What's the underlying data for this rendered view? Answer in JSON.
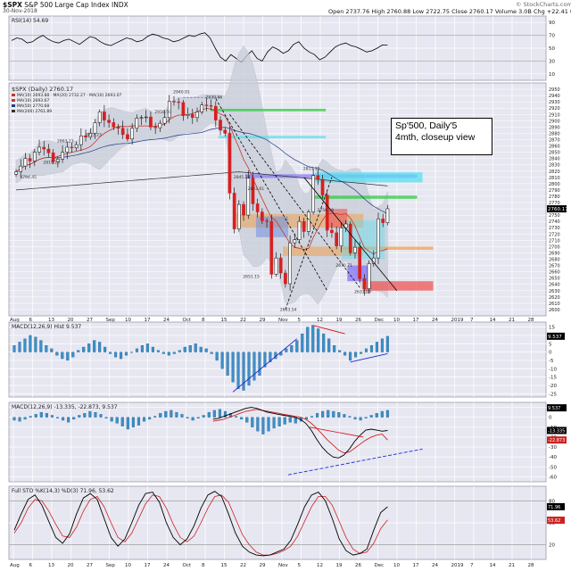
{
  "header": {
    "symbol": "$SPX",
    "name": "S&P 500 Large Cap Index",
    "exchange": "INDX",
    "date": "30-Nov-2018",
    "ohlc": "Open 2737.76  High 2760.88  Low 2722.75  Close 2760.17  Volume 3.0B  Chg +22.41 (+0.82%)",
    "watermark": "© StockCharts.com"
  },
  "annotation": {
    "line1": "Sp'500, Daily'5",
    "line2": "4mth, closeup view"
  },
  "chart_data": [
    {
      "type": "line",
      "panel": "rsi",
      "title": "RSI(14) 54.69",
      "yticks": [
        10,
        30,
        50,
        70,
        90
      ],
      "ylim": [
        0,
        100
      ],
      "series": [
        {
          "name": "RSI(14)",
          "values": [
            62,
            66,
            64,
            58,
            60,
            66,
            70,
            64,
            60,
            58,
            62,
            64,
            60,
            56,
            62,
            68,
            66,
            60,
            56,
            54,
            58,
            62,
            66,
            64,
            60,
            62,
            68,
            72,
            70,
            66,
            64,
            60,
            62,
            66,
            70,
            68,
            72,
            74,
            66,
            50,
            36,
            30,
            40,
            34,
            28,
            38,
            46,
            34,
            30,
            44,
            52,
            48,
            42,
            46,
            56,
            60,
            50,
            44,
            40,
            32,
            36,
            44,
            52,
            56,
            58,
            54,
            52,
            48,
            44,
            46,
            50,
            55,
            54.69
          ]
        }
      ]
    },
    {
      "type": "line",
      "panel": "price",
      "title": "$SPX (Daily) 2760.17",
      "legend": [
        "MA(10) 2693.88 · MA(20) 2732.27 · MA(10) 2693.07",
        "MA(10) 2693.67",
        "MA(50) 2770.68",
        "MA(200) 2761.89"
      ],
      "ylim": [
        2590,
        2960
      ],
      "yticks": [
        2600,
        2610,
        2620,
        2630,
        2640,
        2650,
        2660,
        2670,
        2680,
        2690,
        2700,
        2710,
        2720,
        2730,
        2740,
        2750,
        2760,
        2770,
        2780,
        2790,
        2800,
        2810,
        2820,
        2830,
        2840,
        2850,
        2860,
        2870,
        2880,
        2890,
        2900,
        2910,
        2920,
        2930,
        2940,
        2950
      ],
      "last_price": "2760.17",
      "xticks": [
        "Aug",
        "6",
        "13",
        "20",
        "27",
        "Sep",
        "10",
        "17",
        "24",
        "Oct",
        "8",
        "15",
        "22",
        "29",
        "Nov",
        "5",
        "12",
        "19",
        "26",
        "Dec",
        "10",
        "17",
        "24",
        "2019",
        "7",
        "14",
        "21",
        "28"
      ],
      "close": [
        2819,
        2828,
        2840,
        2836,
        2850,
        2858,
        2855,
        2849,
        2835,
        2839,
        2850,
        2858,
        2857,
        2862,
        2876,
        2874,
        2880,
        2897,
        2914,
        2901,
        2897,
        2890,
        2888,
        2878,
        2871,
        2888,
        2904,
        2905,
        2906,
        2890,
        2889,
        2896,
        2905,
        2931,
        2930,
        2929,
        2908,
        2910,
        2905,
        2914,
        2925,
        2924,
        2923,
        2901,
        2885,
        2880,
        2785,
        2728,
        2767,
        2750,
        2809,
        2768,
        2755,
        2741,
        2740,
        2656,
        2682,
        2658,
        2641,
        2706,
        2711,
        2740,
        2724,
        2755,
        2813,
        2807,
        2782,
        2726,
        2722,
        2701,
        2730,
        2736,
        2690,
        2699,
        2649,
        2633,
        2673,
        2682,
        2744,
        2738,
        2760.17
      ],
      "price_labels": [
        "2794.45",
        "2819.26",
        "2863.23",
        "2873.23",
        "2916.50",
        "2940.91",
        "2939.86",
        "2845.23",
        "2803.61",
        "2651.15",
        "2603.54",
        "2815.15",
        "2756.58",
        "2670.71",
        "2631.09"
      ]
    },
    {
      "type": "bar",
      "panel": "macd-hist",
      "title": "MACD(12,26,9) Hist 9.537",
      "yticks": [
        15,
        10,
        5,
        0,
        -5,
        -10,
        -15,
        -20,
        -25
      ],
      "last_value": "9.537",
      "values": [
        4,
        6,
        8,
        10,
        9,
        7,
        4,
        2,
        -2,
        -4,
        -5,
        -3,
        1,
        3,
        5,
        7,
        6,
        3,
        -1,
        -3,
        -4,
        -2,
        0,
        2,
        4,
        5,
        3,
        1,
        -1,
        -2,
        -1,
        1,
        3,
        4,
        5,
        3,
        2,
        -1,
        -5,
        -10,
        -14,
        -18,
        -22,
        -23,
        -20,
        -17,
        -14,
        -9,
        -6,
        -4,
        -2,
        2,
        4,
        7,
        11,
        15,
        16,
        14,
        11,
        8,
        4,
        1,
        -2,
        -5,
        -3,
        -1,
        2,
        4,
        6,
        8,
        9.5
      ]
    },
    {
      "type": "line",
      "panel": "macd",
      "title": "MACD(12,26,9) -13.335, -22.873, 9.537",
      "yticks": [
        10,
        0,
        -10,
        -20,
        -30,
        -40,
        -50,
        -60
      ],
      "last_values": [
        "9.537",
        "-13.335",
        "-22.873"
      ],
      "series": [
        {
          "name": "MACD",
          "values": [
            -2,
            -1,
            1,
            3,
            5,
            7,
            9,
            10,
            9,
            7,
            5,
            4,
            3,
            2,
            1,
            0,
            -2,
            -6,
            -13,
            -22,
            -30,
            -36,
            -40,
            -41,
            -38,
            -32,
            -24,
            -18,
            -13,
            -12,
            -13,
            -14,
            -13.3
          ]
        },
        {
          "name": "Signal",
          "values": [
            -4,
            -3,
            -2,
            0,
            2,
            4,
            6,
            7,
            8,
            7,
            6,
            5,
            4,
            3,
            2,
            1,
            0,
            -2,
            -6,
            -11,
            -17,
            -23,
            -28,
            -33,
            -36,
            -35,
            -31,
            -27,
            -23,
            -20,
            -18,
            -17,
            -22.9
          ]
        }
      ],
      "histogram": [
        -3,
        -4,
        -2,
        1,
        3,
        5,
        4,
        2,
        -1,
        -3,
        -5,
        -2,
        2,
        4,
        6,
        5,
        3,
        -1,
        -4,
        -6,
        -9,
        -12,
        -10,
        -8,
        -4,
        -2,
        1,
        4,
        6,
        7,
        5,
        3,
        -1,
        -3,
        -1,
        2,
        5,
        7,
        8,
        6,
        4,
        1,
        -2,
        -5,
        -10,
        -14,
        -17,
        -14,
        -11,
        -9,
        -7,
        -5,
        -6,
        -4,
        -2,
        1,
        4,
        6,
        7,
        6,
        5,
        3,
        1,
        -2,
        -3,
        -1,
        2,
        4,
        6,
        7
      ]
    },
    {
      "type": "line",
      "panel": "full-sto",
      "title": "Full STO %K(14,3) %D(3) 71.96, 53.62",
      "yticks": [
        80,
        50,
        20
      ],
      "last_values": [
        "71.96",
        "53.62"
      ],
      "series": [
        {
          "name": "%K",
          "values": [
            40,
            62,
            82,
            88,
            74,
            52,
            30,
            22,
            35,
            62,
            84,
            90,
            82,
            56,
            30,
            18,
            28,
            50,
            74,
            90,
            92,
            78,
            50,
            30,
            20,
            28,
            46,
            70,
            88,
            93,
            86,
            62,
            36,
            18,
            10,
            6,
            5,
            6,
            10,
            14,
            26,
            48,
            72,
            88,
            92,
            80,
            56,
            28,
            12,
            6,
            8,
            14,
            40,
            64,
            72
          ]
        },
        {
          "name": "%D",
          "values": [
            36,
            50,
            70,
            82,
            80,
            66,
            48,
            32,
            30,
            44,
            66,
            82,
            86,
            72,
            50,
            30,
            24,
            36,
            56,
            76,
            88,
            86,
            70,
            48,
            30,
            24,
            32,
            50,
            70,
            86,
            88,
            78,
            56,
            34,
            20,
            10,
            6,
            6,
            8,
            12,
            18,
            32,
            52,
            72,
            86,
            86,
            74,
            52,
            30,
            14,
            8,
            10,
            22,
            42,
            54
          ]
        }
      ]
    }
  ],
  "colors": {
    "panel_bg": "#e7e7f1",
    "grid": "#ffffff",
    "border": "#9a9ab0",
    "candle_up": "#ffffff",
    "candle_down": "#d62020",
    "ma_red": "#c0392b",
    "ma_blue": "#1f3c88",
    "hist": "#3b8fc9",
    "macd_line": "#000000",
    "signal_line": "#cc2222",
    "bollinger_fill": "#c8cdd8",
    "highlight_green": "#2ecc40",
    "highlight_cyan": "#58e0f0",
    "highlight_purple": "#8a7cf4",
    "highlight_orange": "#f0a050",
    "highlight_red": "#ee5555"
  }
}
